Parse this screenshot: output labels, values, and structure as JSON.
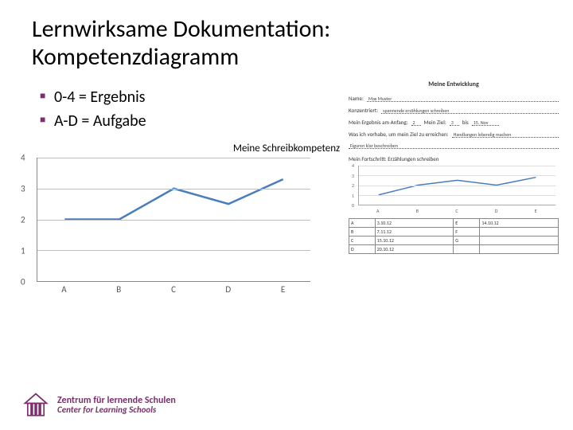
{
  "title_line1": "Lernwirksame Dokumentation:",
  "title_line2": "Kompetenzdiagramm",
  "bullets": {
    "b1": "0-4 = Ergebnis",
    "b2": "A-D = Aufgabe"
  },
  "chart": {
    "type": "line",
    "title": "Meine Schreibkompetenz",
    "categories": [
      "A",
      "B",
      "C",
      "D",
      "E"
    ],
    "values": [
      2,
      2,
      3,
      2.5,
      3.3
    ],
    "ylim": [
      0,
      4
    ],
    "ytick_step": 1,
    "line_color": "#4a7ebb",
    "line_width": 2.5,
    "grid_color": "#bfbfbf",
    "axis_color": "#888888",
    "background_color": "#ffffff",
    "label_fontsize": 11,
    "title_fontsize": 13
  },
  "worksheet": {
    "title": "Meine Entwicklung",
    "name_label": "Name:",
    "name_value": "Max Muster",
    "konzentriert_label": "Konzentriert:",
    "konzentriert_value": "spannende erzählungen schreiben",
    "ergebnis_label": "Mein Ergebnis am Anfang:",
    "ergebnis_val1": "2",
    "ziel_label": "Mein Ziel:",
    "ziel_val": "3",
    "bis_label": "bis",
    "bis_val": "15. Nov",
    "vorhabe_label": "Was ich vorhabe, um mein Ziel zu erreichen:",
    "vorhabe_value": "Handlungen lebendig machen",
    "extra_value": "Figuren klar beschreiben",
    "subtitle": "Mein Fortschritt: Erzählungen schreiben",
    "mini_chart": {
      "categories": [
        "A",
        "B",
        "C",
        "D",
        "E"
      ],
      "values": [
        1,
        2,
        2.5,
        2,
        2.8
      ],
      "ylim": [
        0,
        4
      ],
      "line_color": "#4a7ebb",
      "grid_color": "#dddddd"
    },
    "table": {
      "columns": [
        "",
        "",
        "",
        ""
      ],
      "rows": [
        [
          "A",
          "3.10.12",
          "E",
          "14.10.12"
        ],
        [
          "B",
          "7.11.12",
          "F",
          ""
        ],
        [
          "C",
          "15.10.12",
          "G",
          ""
        ],
        [
          "D",
          "20.10.12",
          "",
          ""
        ]
      ]
    }
  },
  "footer": {
    "line1": "Zentrum für lernende Schulen",
    "line2": "Center for Learning Schools",
    "brand_color": "#7b2e6b"
  }
}
